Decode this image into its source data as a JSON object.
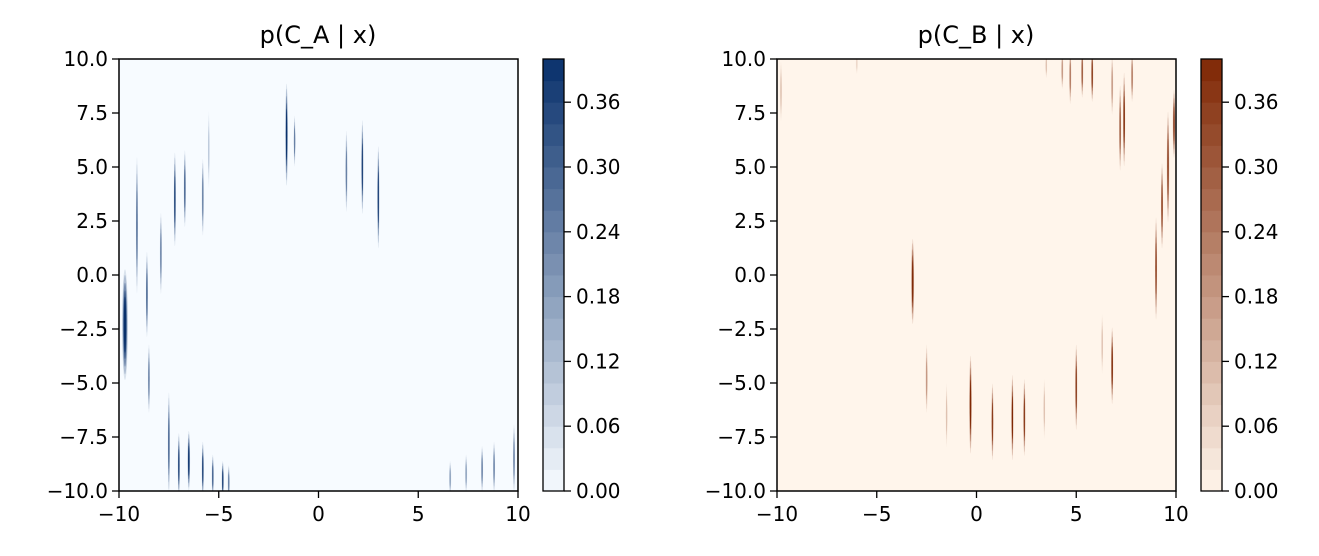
{
  "chart_data": [
    {
      "type": "heatmap",
      "title": "p(C_A | x)",
      "xlabel": "",
      "ylabel": "",
      "xlim": [
        -10,
        10
      ],
      "ylim": [
        -10,
        10
      ],
      "xticks": [
        -10,
        -5,
        0,
        5,
        10
      ],
      "xtick_labels": [
        "−10",
        "−5",
        "0",
        "5",
        "10"
      ],
      "yticks": [
        -10,
        -7.5,
        -5,
        -2.5,
        0,
        2.5,
        5,
        7.5,
        10
      ],
      "ytick_labels": [
        "−10.0",
        "−7.5",
        "−5.0",
        "−2.5",
        "0.0",
        "2.5",
        "5.0",
        "7.5",
        "10.0"
      ],
      "colormap": "Blues",
      "color_low": "#f7fbff",
      "color_high": "#08306b",
      "colorbar": {
        "min": 0,
        "max": 0.4,
        "ticks": [
          0,
          0.06,
          0.12,
          0.18,
          0.24,
          0.3,
          0.36
        ],
        "tick_labels": [
          "0.00",
          "0.06",
          "0.12",
          "0.18",
          "0.24",
          "0.30",
          "0.36"
        ]
      },
      "grid": false,
      "spikes": [
        {
          "x": -9.7,
          "y": -2.3,
          "peak": 0.4,
          "half_width": 0.14,
          "half_height": 2.6
        },
        {
          "x": -9.1,
          "y": 2.3,
          "peak": 0.28,
          "half_width": 0.05,
          "half_height": 3.2
        },
        {
          "x": -8.6,
          "y": -0.9,
          "peak": 0.3,
          "half_width": 0.05,
          "half_height": 2.0
        },
        {
          "x": -8.5,
          "y": -4.8,
          "peak": 0.24,
          "half_width": 0.05,
          "half_height": 1.6
        },
        {
          "x": -7.9,
          "y": 1.0,
          "peak": 0.24,
          "half_width": 0.05,
          "half_height": 1.9
        },
        {
          "x": -7.5,
          "y": -7.8,
          "peak": 0.3,
          "half_width": 0.05,
          "half_height": 2.4
        },
        {
          "x": -7.2,
          "y": 3.5,
          "peak": 0.36,
          "half_width": 0.05,
          "half_height": 2.2
        },
        {
          "x": -7.0,
          "y": -8.8,
          "peak": 0.36,
          "half_width": 0.05,
          "half_height": 1.5
        },
        {
          "x": -6.7,
          "y": 4.0,
          "peak": 0.3,
          "half_width": 0.05,
          "half_height": 1.8
        },
        {
          "x": -6.5,
          "y": -8.6,
          "peak": 0.4,
          "half_width": 0.06,
          "half_height": 1.4
        },
        {
          "x": -5.8,
          "y": -9.0,
          "peak": 0.36,
          "half_width": 0.05,
          "half_height": 1.3
        },
        {
          "x": -5.8,
          "y": 3.6,
          "peak": 0.24,
          "half_width": 0.05,
          "half_height": 1.8
        },
        {
          "x": -5.5,
          "y": 5.8,
          "peak": 0.1,
          "half_width": 0.04,
          "half_height": 1.8
        },
        {
          "x": -5.3,
          "y": -9.3,
          "peak": 0.3,
          "half_width": 0.05,
          "half_height": 1.0
        },
        {
          "x": -4.8,
          "y": -9.5,
          "peak": 0.36,
          "half_width": 0.05,
          "half_height": 0.9
        },
        {
          "x": -4.5,
          "y": -9.6,
          "peak": 0.24,
          "half_width": 0.05,
          "half_height": 0.8
        },
        {
          "x": -1.6,
          "y": 6.5,
          "peak": 0.4,
          "half_width": 0.06,
          "half_height": 2.4
        },
        {
          "x": -1.2,
          "y": 6.2,
          "peak": 0.24,
          "half_width": 0.04,
          "half_height": 1.2
        },
        {
          "x": 1.4,
          "y": 4.8,
          "peak": 0.24,
          "half_width": 0.05,
          "half_height": 1.9
        },
        {
          "x": 2.2,
          "y": 5.0,
          "peak": 0.36,
          "half_width": 0.05,
          "half_height": 2.2
        },
        {
          "x": 3.0,
          "y": 3.6,
          "peak": 0.36,
          "half_width": 0.05,
          "half_height": 2.4
        },
        {
          "x": 6.6,
          "y": -9.4,
          "peak": 0.18,
          "half_width": 0.05,
          "half_height": 0.8
        },
        {
          "x": 7.4,
          "y": -9.2,
          "peak": 0.18,
          "half_width": 0.05,
          "half_height": 0.9
        },
        {
          "x": 8.2,
          "y": -9.0,
          "peak": 0.24,
          "half_width": 0.05,
          "half_height": 1.1
        },
        {
          "x": 8.8,
          "y": -8.9,
          "peak": 0.24,
          "half_width": 0.05,
          "half_height": 1.2
        },
        {
          "x": 9.8,
          "y": -8.5,
          "peak": 0.24,
          "half_width": 0.05,
          "half_height": 1.6
        }
      ]
    },
    {
      "type": "heatmap",
      "title": "p(C_B | x)",
      "xlabel": "",
      "ylabel": "",
      "xlim": [
        -10,
        10
      ],
      "ylim": [
        -10,
        10
      ],
      "xticks": [
        -10,
        -5,
        0,
        5,
        10
      ],
      "xtick_labels": [
        "−10",
        "−5",
        "0",
        "5",
        "10"
      ],
      "yticks": [
        -10,
        -7.5,
        -5,
        -2.5,
        0,
        2.5,
        5,
        7.5,
        10
      ],
      "ytick_labels": [
        "−10.0",
        "−7.5",
        "−5.0",
        "−2.5",
        "0.0",
        "2.5",
        "5.0",
        "7.5",
        "10.0"
      ],
      "colormap": "Oranges",
      "color_low": "#fff5eb",
      "color_high": "#7f2704",
      "colorbar": {
        "min": 0,
        "max": 0.4,
        "ticks": [
          0,
          0.06,
          0.12,
          0.18,
          0.24,
          0.3,
          0.36
        ],
        "tick_labels": [
          "0.00",
          "0.06",
          "0.12",
          "0.18",
          "0.24",
          "0.30",
          "0.36"
        ]
      },
      "grid": false,
      "spikes": [
        {
          "x": -9.8,
          "y": 8.5,
          "peak": 0.1,
          "half_width": 0.05,
          "half_height": 1.4
        },
        {
          "x": -6.0,
          "y": 9.8,
          "peak": 0.06,
          "half_width": 0.05,
          "half_height": 0.5
        },
        {
          "x": -3.2,
          "y": -0.3,
          "peak": 0.4,
          "half_width": 0.07,
          "half_height": 2.0
        },
        {
          "x": -2.5,
          "y": -4.8,
          "peak": 0.18,
          "half_width": 0.05,
          "half_height": 1.6
        },
        {
          "x": -1.5,
          "y": -6.5,
          "peak": 0.1,
          "half_width": 0.04,
          "half_height": 1.5
        },
        {
          "x": -0.3,
          "y": -6.0,
          "peak": 0.4,
          "half_width": 0.06,
          "half_height": 2.3
        },
        {
          "x": 0.8,
          "y": -6.8,
          "peak": 0.36,
          "half_width": 0.05,
          "half_height": 1.8
        },
        {
          "x": 1.8,
          "y": -6.6,
          "peak": 0.4,
          "half_width": 0.05,
          "half_height": 2.0
        },
        {
          "x": 2.4,
          "y": -6.6,
          "peak": 0.36,
          "half_width": 0.05,
          "half_height": 1.8
        },
        {
          "x": 3.4,
          "y": -6.2,
          "peak": 0.1,
          "half_width": 0.04,
          "half_height": 1.4
        },
        {
          "x": 3.5,
          "y": 9.7,
          "peak": 0.1,
          "half_width": 0.04,
          "half_height": 0.6
        },
        {
          "x": 4.3,
          "y": 9.5,
          "peak": 0.18,
          "half_width": 0.05,
          "half_height": 0.9
        },
        {
          "x": 4.7,
          "y": 9.2,
          "peak": 0.24,
          "half_width": 0.05,
          "half_height": 1.3
        },
        {
          "x": 5.0,
          "y": -5.2,
          "peak": 0.36,
          "half_width": 0.05,
          "half_height": 2.0
        },
        {
          "x": 5.3,
          "y": 9.4,
          "peak": 0.3,
          "half_width": 0.05,
          "half_height": 1.2
        },
        {
          "x": 5.8,
          "y": 9.3,
          "peak": 0.36,
          "half_width": 0.05,
          "half_height": 1.3
        },
        {
          "x": 6.3,
          "y": -3.2,
          "peak": 0.1,
          "half_width": 0.04,
          "half_height": 1.4
        },
        {
          "x": 6.8,
          "y": -4.2,
          "peak": 0.4,
          "half_width": 0.05,
          "half_height": 1.8
        },
        {
          "x": 6.8,
          "y": 8.8,
          "peak": 0.18,
          "half_width": 0.05,
          "half_height": 1.4
        },
        {
          "x": 7.2,
          "y": 6.8,
          "peak": 0.3,
          "half_width": 0.05,
          "half_height": 2.0
        },
        {
          "x": 7.4,
          "y": 7.2,
          "peak": 0.4,
          "half_width": 0.05,
          "half_height": 2.2
        },
        {
          "x": 7.8,
          "y": 9.2,
          "peak": 0.24,
          "half_width": 0.05,
          "half_height": 1.2
        },
        {
          "x": 9.0,
          "y": 0.3,
          "peak": 0.36,
          "half_width": 0.05,
          "half_height": 2.4
        },
        {
          "x": 9.3,
          "y": 3.2,
          "peak": 0.36,
          "half_width": 0.05,
          "half_height": 2.0
        },
        {
          "x": 9.6,
          "y": 5.0,
          "peak": 0.36,
          "half_width": 0.06,
          "half_height": 2.6
        },
        {
          "x": 9.9,
          "y": 7.0,
          "peak": 0.36,
          "half_width": 0.06,
          "half_height": 1.6
        }
      ]
    }
  ]
}
